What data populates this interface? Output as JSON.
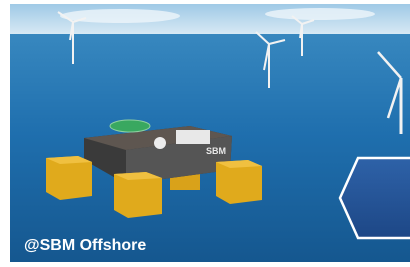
{
  "image": {
    "caption": "@SBM Offshore",
    "platform_label": "SBM"
  }
}
